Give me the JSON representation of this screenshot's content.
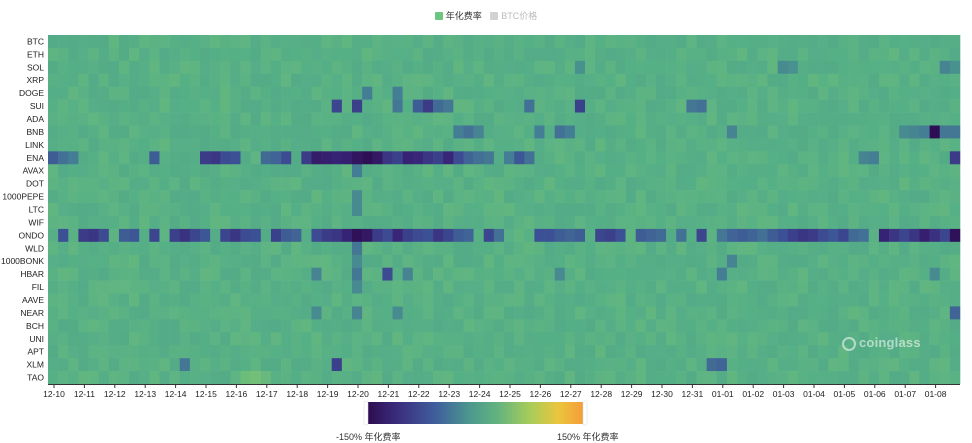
{
  "legend": {
    "items": [
      {
        "label": "年化费率",
        "color": "#6cc67f",
        "active": true
      },
      {
        "label": "BTC价格",
        "color": "#d2d2d2",
        "active": false
      }
    ]
  },
  "watermark": "coinglass",
  "visual_map": {
    "min_label": "-150% 年化费率",
    "max_label": "150% 年化费率",
    "min": -150,
    "max": 150,
    "colors": [
      "#2c0a4f",
      "#3b3a8a",
      "#3f6fa0",
      "#4d9a8e",
      "#5aab86",
      "#8cc46a",
      "#e9c53b",
      "#f5a23a"
    ]
  },
  "chart_data": {
    "type": "heatmap",
    "title": "",
    "xlabel": "",
    "ylabel": "",
    "value_unit": "年化费率 (%)",
    "x_tick_labels": [
      "12-10",
      "12-11",
      "12-12",
      "12-13",
      "12-14",
      "12-15",
      "12-16",
      "12-17",
      "12-18",
      "12-19",
      "12-20",
      "12-21",
      "12-22",
      "12-23",
      "12-24",
      "12-25",
      "12-26",
      "12-27",
      "12-28",
      "12-29",
      "12-30",
      "12-31",
      "01-01",
      "01-02",
      "01-03",
      "01-04",
      "01-05",
      "01-06",
      "01-07",
      "01-08"
    ],
    "columns_per_day": 3,
    "rows": [
      "BTC",
      "ETH",
      "SOL",
      "XRP",
      "DOGE",
      "SUI",
      "ADA",
      "BNB",
      "LINK",
      "ENA",
      "AVAX",
      "DOT",
      "1000PEPE",
      "LTC",
      "WIF",
      "ONDO",
      "WLD",
      "1000BONK",
      "HBAR",
      "FIL",
      "AAVE",
      "NEAR",
      "BCH",
      "UNI",
      "APT",
      "XLM",
      "TAO"
    ],
    "baseline": 8,
    "cells": [
      {
        "row": "SOL",
        "col": 52,
        "value": -20
      },
      {
        "row": "SOL",
        "col": 72,
        "value": -25
      },
      {
        "row": "SOL",
        "col": 73,
        "value": -20
      },
      {
        "row": "SOL",
        "col": 88,
        "value": -30
      },
      {
        "row": "SOL",
        "col": 89,
        "value": -20
      },
      {
        "row": "DOGE",
        "col": 31,
        "value": -35
      },
      {
        "row": "DOGE",
        "col": 34,
        "value": -35
      },
      {
        "row": "SUI",
        "col": 28,
        "value": -80
      },
      {
        "row": "SUI",
        "col": 30,
        "value": -85
      },
      {
        "row": "SUI",
        "col": 34,
        "value": -40
      },
      {
        "row": "SUI",
        "col": 36,
        "value": -60
      },
      {
        "row": "SUI",
        "col": 37,
        "value": -90
      },
      {
        "row": "SUI",
        "col": 38,
        "value": -50
      },
      {
        "row": "SUI",
        "col": 39,
        "value": -40
      },
      {
        "row": "SUI",
        "col": 47,
        "value": -45
      },
      {
        "row": "SUI",
        "col": 52,
        "value": -85
      },
      {
        "row": "SUI",
        "col": 63,
        "value": -40
      },
      {
        "row": "SUI",
        "col": 64,
        "value": -45
      },
      {
        "row": "BNB",
        "col": 40,
        "value": -35
      },
      {
        "row": "BNB",
        "col": 41,
        "value": -45
      },
      {
        "row": "BNB",
        "col": 42,
        "value": -30
      },
      {
        "row": "BNB",
        "col": 48,
        "value": -35
      },
      {
        "row": "BNB",
        "col": 50,
        "value": -45
      },
      {
        "row": "BNB",
        "col": 51,
        "value": -35
      },
      {
        "row": "BNB",
        "col": 67,
        "value": -30
      },
      {
        "row": "BNB",
        "col": 86,
        "value": -35
      },
      {
        "row": "BNB",
        "col": 85,
        "value": -30
      },
      {
        "row": "BNB",
        "col": 84,
        "value": -25
      },
      {
        "row": "BNB",
        "col": 87,
        "value": -145
      },
      {
        "row": "BNB",
        "col": 88,
        "value": -40
      },
      {
        "row": "BNB",
        "col": 89,
        "value": -40
      },
      {
        "row": "ENA",
        "col": 0,
        "value": -60
      },
      {
        "row": "ENA",
        "col": 1,
        "value": -45
      },
      {
        "row": "ENA",
        "col": 2,
        "value": -35
      },
      {
        "row": "ENA",
        "col": 10,
        "value": -60
      },
      {
        "row": "ENA",
        "col": 15,
        "value": -90
      },
      {
        "row": "ENA",
        "col": 16,
        "value": -95
      },
      {
        "row": "ENA",
        "col": 17,
        "value": -75
      },
      {
        "row": "ENA",
        "col": 18,
        "value": -70
      },
      {
        "row": "ENA",
        "col": 21,
        "value": -50
      },
      {
        "row": "ENA",
        "col": 22,
        "value": -55
      },
      {
        "row": "ENA",
        "col": 23,
        "value": -75
      },
      {
        "row": "ENA",
        "col": 25,
        "value": -90
      },
      {
        "row": "ENA",
        "col": 26,
        "value": -125
      },
      {
        "row": "ENA",
        "col": 27,
        "value": -120
      },
      {
        "row": "ENA",
        "col": 28,
        "value": -115
      },
      {
        "row": "ENA",
        "col": 29,
        "value": -120
      },
      {
        "row": "ENA",
        "col": 30,
        "value": -135
      },
      {
        "row": "ENA",
        "col": 31,
        "value": -145
      },
      {
        "row": "ENA",
        "col": 32,
        "value": -130
      },
      {
        "row": "ENA",
        "col": 33,
        "value": -95
      },
      {
        "row": "ENA",
        "col": 34,
        "value": -85
      },
      {
        "row": "ENA",
        "col": 35,
        "value": -115
      },
      {
        "row": "ENA",
        "col": 36,
        "value": -110
      },
      {
        "row": "ENA",
        "col": 37,
        "value": -95
      },
      {
        "row": "ENA",
        "col": 38,
        "value": -85
      },
      {
        "row": "ENA",
        "col": 39,
        "value": -110
      },
      {
        "row": "ENA",
        "col": 40,
        "value": -75
      },
      {
        "row": "ENA",
        "col": 41,
        "value": -55
      },
      {
        "row": "ENA",
        "col": 42,
        "value": -45
      },
      {
        "row": "ENA",
        "col": 43,
        "value": -40
      },
      {
        "row": "ENA",
        "col": 45,
        "value": -35
      },
      {
        "row": "ENA",
        "col": 46,
        "value": -65
      },
      {
        "row": "ENA",
        "col": 47,
        "value": -45
      },
      {
        "row": "ENA",
        "col": 80,
        "value": -30
      },
      {
        "row": "ENA",
        "col": 81,
        "value": -35
      },
      {
        "row": "ENA",
        "col": 89,
        "value": -90
      },
      {
        "row": "AVAX",
        "col": 30,
        "value": -35
      },
      {
        "row": "1000PEPE",
        "col": 30,
        "value": -25
      },
      {
        "row": "LTC",
        "col": 30,
        "value": -25
      },
      {
        "row": "ONDO",
        "col": 1,
        "value": -70
      },
      {
        "row": "ONDO",
        "col": 3,
        "value": -90
      },
      {
        "row": "ONDO",
        "col": 4,
        "value": -95
      },
      {
        "row": "ONDO",
        "col": 5,
        "value": -75
      },
      {
        "row": "ONDO",
        "col": 7,
        "value": -60
      },
      {
        "row": "ONDO",
        "col": 8,
        "value": -65
      },
      {
        "row": "ONDO",
        "col": 10,
        "value": -80
      },
      {
        "row": "ONDO",
        "col": 12,
        "value": -85
      },
      {
        "row": "ONDO",
        "col": 13,
        "value": -100
      },
      {
        "row": "ONDO",
        "col": 14,
        "value": -80
      },
      {
        "row": "ONDO",
        "col": 15,
        "value": -65
      },
      {
        "row": "ONDO",
        "col": 17,
        "value": -80
      },
      {
        "row": "ONDO",
        "col": 18,
        "value": -95
      },
      {
        "row": "ONDO",
        "col": 19,
        "value": -75
      },
      {
        "row": "ONDO",
        "col": 20,
        "value": -70
      },
      {
        "row": "ONDO",
        "col": 22,
        "value": -85
      },
      {
        "row": "ONDO",
        "col": 23,
        "value": -60
      },
      {
        "row": "ONDO",
        "col": 24,
        "value": -55
      },
      {
        "row": "ONDO",
        "col": 26,
        "value": -75
      },
      {
        "row": "ONDO",
        "col": 27,
        "value": -90
      },
      {
        "row": "ONDO",
        "col": 28,
        "value": -95
      },
      {
        "row": "ONDO",
        "col": 29,
        "value": -115
      },
      {
        "row": "ONDO",
        "col": 30,
        "value": -140
      },
      {
        "row": "ONDO",
        "col": 31,
        "value": -130
      },
      {
        "row": "ONDO",
        "col": 32,
        "value": -90
      },
      {
        "row": "ONDO",
        "col": 33,
        "value": -75
      },
      {
        "row": "ONDO",
        "col": 34,
        "value": -110
      },
      {
        "row": "ONDO",
        "col": 35,
        "value": -85
      },
      {
        "row": "ONDO",
        "col": 36,
        "value": -75
      },
      {
        "row": "ONDO",
        "col": 37,
        "value": -70
      },
      {
        "row": "ONDO",
        "col": 38,
        "value": -95
      },
      {
        "row": "ONDO",
        "col": 39,
        "value": -80
      },
      {
        "row": "ONDO",
        "col": 40,
        "value": -60
      },
      {
        "row": "ONDO",
        "col": 41,
        "value": -55
      },
      {
        "row": "ONDO",
        "col": 43,
        "value": -80
      },
      {
        "row": "ONDO",
        "col": 44,
        "value": -45
      },
      {
        "row": "ONDO",
        "col": 48,
        "value": -70
      },
      {
        "row": "ONDO",
        "col": 49,
        "value": -70
      },
      {
        "row": "ONDO",
        "col": 50,
        "value": -60
      },
      {
        "row": "ONDO",
        "col": 51,
        "value": -55
      },
      {
        "row": "ONDO",
        "col": 52,
        "value": -60
      },
      {
        "row": "ONDO",
        "col": 54,
        "value": -80
      },
      {
        "row": "ONDO",
        "col": 55,
        "value": -85
      },
      {
        "row": "ONDO",
        "col": 56,
        "value": -70
      },
      {
        "row": "ONDO",
        "col": 58,
        "value": -60
      },
      {
        "row": "ONDO",
        "col": 59,
        "value": -55
      },
      {
        "row": "ONDO",
        "col": 60,
        "value": -50
      },
      {
        "row": "ONDO",
        "col": 62,
        "value": -45
      },
      {
        "row": "ONDO",
        "col": 64,
        "value": -80
      },
      {
        "row": "ONDO",
        "col": 66,
        "value": -40
      },
      {
        "row": "ONDO",
        "col": 67,
        "value": -55
      },
      {
        "row": "ONDO",
        "col": 68,
        "value": -60
      },
      {
        "row": "ONDO",
        "col": 69,
        "value": -55
      },
      {
        "row": "ONDO",
        "col": 70,
        "value": -45
      },
      {
        "row": "ONDO",
        "col": 71,
        "value": -60
      },
      {
        "row": "ONDO",
        "col": 72,
        "value": -70
      },
      {
        "row": "ONDO",
        "col": 73,
        "value": -85
      },
      {
        "row": "ONDO",
        "col": 74,
        "value": -95
      },
      {
        "row": "ONDO",
        "col": 75,
        "value": -90
      },
      {
        "row": "ONDO",
        "col": 76,
        "value": -75
      },
      {
        "row": "ONDO",
        "col": 77,
        "value": -65
      },
      {
        "row": "ONDO",
        "col": 78,
        "value": -80
      },
      {
        "row": "ONDO",
        "col": 79,
        "value": -50
      },
      {
        "row": "ONDO",
        "col": 80,
        "value": -45
      },
      {
        "row": "ONDO",
        "col": 82,
        "value": -115
      },
      {
        "row": "ONDO",
        "col": 83,
        "value": -95
      },
      {
        "row": "ONDO",
        "col": 84,
        "value": -80
      },
      {
        "row": "ONDO",
        "col": 85,
        "value": -95
      },
      {
        "row": "ONDO",
        "col": 86,
        "value": -120
      },
      {
        "row": "ONDO",
        "col": 87,
        "value": -100
      },
      {
        "row": "ONDO",
        "col": 88,
        "value": -80
      },
      {
        "row": "ONDO",
        "col": 89,
        "value": -140
      },
      {
        "row": "WLD",
        "col": 30,
        "value": -40
      },
      {
        "row": "1000BONK",
        "col": 30,
        "value": -25
      },
      {
        "row": "1000BONK",
        "col": 67,
        "value": -30
      },
      {
        "row": "HBAR",
        "col": 26,
        "value": -30
      },
      {
        "row": "HBAR",
        "col": 30,
        "value": -40
      },
      {
        "row": "HBAR",
        "col": 33,
        "value": -75
      },
      {
        "row": "HBAR",
        "col": 35,
        "value": -30
      },
      {
        "row": "HBAR",
        "col": 50,
        "value": -25
      },
      {
        "row": "HBAR",
        "col": 66,
        "value": -35
      },
      {
        "row": "HBAR",
        "col": 87,
        "value": -25
      },
      {
        "row": "FIL",
        "col": 30,
        "value": -25
      },
      {
        "row": "NEAR",
        "col": 26,
        "value": -25
      },
      {
        "row": "NEAR",
        "col": 30,
        "value": -30
      },
      {
        "row": "NEAR",
        "col": 34,
        "value": -25
      },
      {
        "row": "NEAR",
        "col": 89,
        "value": -55
      },
      {
        "row": "XLM",
        "col": 13,
        "value": -40
      },
      {
        "row": "XLM",
        "col": 28,
        "value": -85
      },
      {
        "row": "XLM",
        "col": 65,
        "value": -50
      },
      {
        "row": "XLM",
        "col": 66,
        "value": -55
      },
      {
        "row": "TAO",
        "col": 19,
        "value": 18
      },
      {
        "row": "TAO",
        "col": 20,
        "value": 22
      },
      {
        "row": "TAO",
        "col": 21,
        "value": 16
      }
    ]
  }
}
